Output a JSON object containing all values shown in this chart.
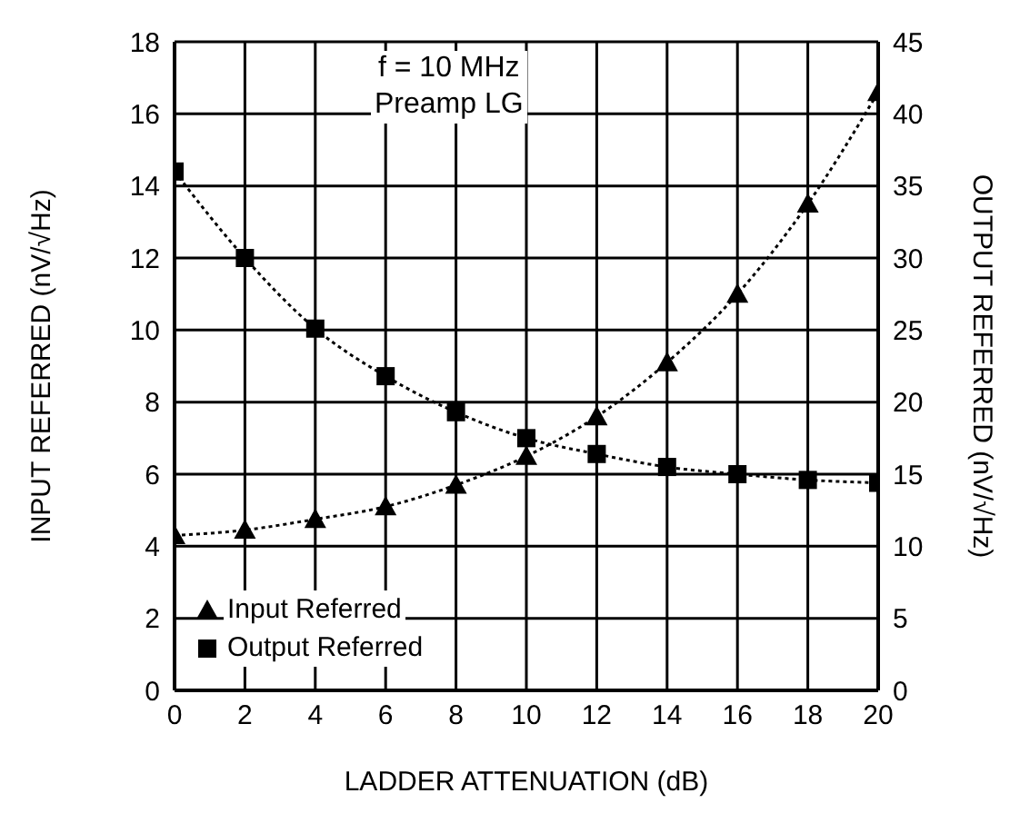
{
  "chart_data": {
    "type": "line",
    "xlabel": "LADDER ATTENUATION (dB)",
    "ylabel": "INPUT REFERRED (nV/√Hz)",
    "y2label": "OUTPUT REFERRED (nV/√Hz)",
    "annotations": [
      "f = 10 MHz",
      "Preamp LG"
    ],
    "x": [
      0,
      2,
      4,
      6,
      8,
      10,
      12,
      14,
      16,
      18,
      20
    ],
    "series": [
      {
        "name": "Input Referred",
        "color": "#000000",
        "marker": "triangle",
        "values": [
          4.3,
          4.45,
          4.75,
          5.1,
          5.7,
          6.5,
          7.6,
          9.1,
          11.0,
          13.5,
          16.6
        ]
      },
      {
        "name": "Output Referred",
        "color": "#000000",
        "marker": "square",
        "axis": "y2",
        "values": [
          36,
          30,
          25.1,
          21.8,
          19.3,
          17.5,
          16.4,
          15.5,
          15,
          14.6,
          14.4
        ]
      }
    ],
    "xlim": [
      0,
      20
    ],
    "xticks": [
      0,
      2,
      4,
      6,
      8,
      10,
      12,
      14,
      16,
      18,
      20
    ],
    "ylim": [
      0,
      18
    ],
    "yticks": [
      0,
      2,
      4,
      6,
      8,
      10,
      12,
      14,
      16,
      18
    ],
    "y2lim": [
      0,
      45
    ],
    "y2ticks": [
      0,
      5,
      10,
      15,
      20,
      25,
      30,
      35,
      40,
      45
    ],
    "grid": true,
    "legend": "bottom left",
    "line_style": "dotted"
  }
}
